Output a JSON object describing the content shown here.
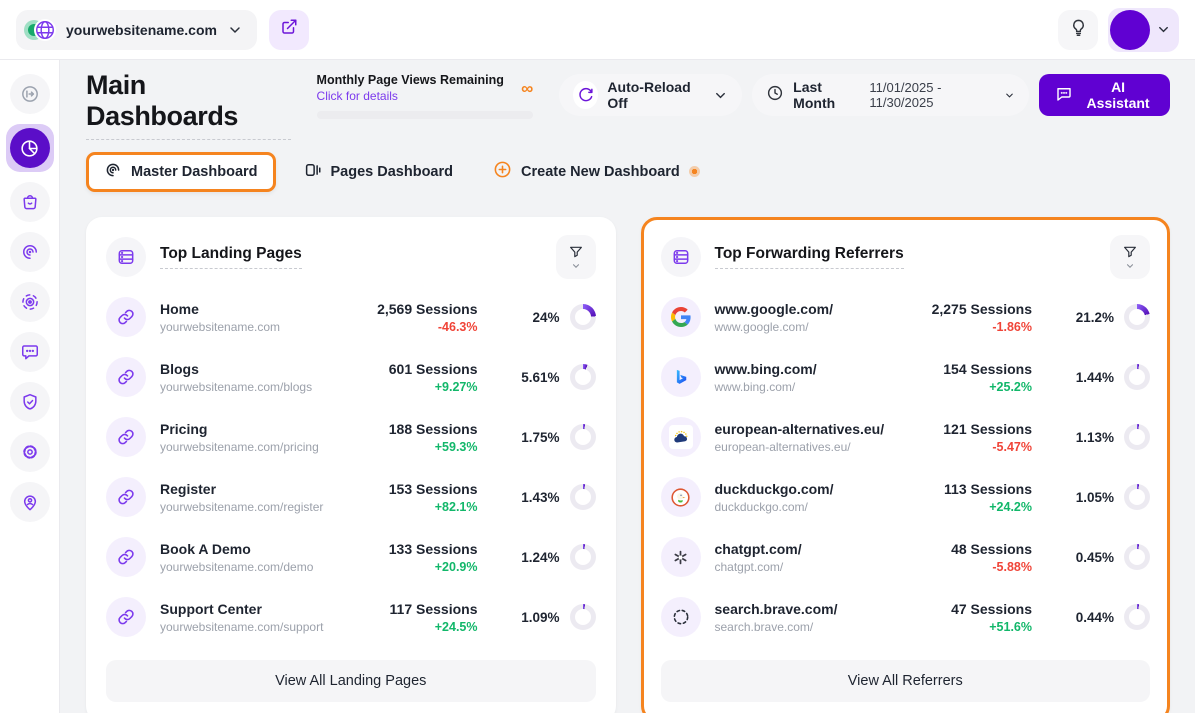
{
  "colors": {
    "accent_purple": "#6001D2",
    "icon_purple": "#7C3AED",
    "highlight_orange": "#F5841F",
    "positive_green": "#12B76A",
    "negative_red": "#F04438"
  },
  "topbar": {
    "website_name": "yourwebsitename.com",
    "icons": [
      "website-favicon",
      "chevron-down",
      "external-link",
      "lightbulb",
      "avatar",
      "chevron-down"
    ]
  },
  "header": {
    "title": "Main Dashboards",
    "quota": {
      "label": "Monthly Page Views Remaining",
      "link": "Click for details",
      "value": "∞"
    },
    "auto_reload_label": "Auto-Reload Off",
    "period": {
      "label": "Last Month",
      "range": "11/01/2025 - 11/30/2025"
    },
    "ai_label": "AI Assistant"
  },
  "tabs": [
    {
      "label": "Master Dashboard",
      "icon": "spiral",
      "active": true
    },
    {
      "label": "Pages Dashboard",
      "icon": "pages",
      "active": false
    },
    {
      "label": "Create New Dashboard",
      "icon": "plus-circle",
      "active": false
    }
  ],
  "sidebar": {
    "items": [
      {
        "icon": "collapse-arrow",
        "state": "muted"
      },
      {
        "icon": "dashboards-pie",
        "state": "active"
      },
      {
        "icon": "ecommerce-bag",
        "state": "default"
      },
      {
        "icon": "behaviour-spiral",
        "state": "default"
      },
      {
        "icon": "session-recordings",
        "state": "default"
      },
      {
        "icon": "feedback-chat",
        "state": "default"
      },
      {
        "icon": "privacy-shield",
        "state": "default"
      },
      {
        "icon": "settings-gear",
        "state": "default"
      },
      {
        "icon": "visitors-pin",
        "state": "default"
      }
    ]
  },
  "cards": [
    {
      "title": "Top Landing Pages",
      "footer_label": "View All Landing Pages",
      "rows": [
        {
          "icon": "link",
          "name": "Home",
          "url": "yourwebsitename.com",
          "sessions": "2,569 Sessions",
          "change": "-46.3%",
          "dir": "down",
          "percent": "24%",
          "pct": 24
        },
        {
          "icon": "link",
          "name": "Blogs",
          "url": "yourwebsitename.com/blogs",
          "sessions": "601 Sessions",
          "change": "+9.27%",
          "dir": "up",
          "percent": "5.61%",
          "pct": 5.61
        },
        {
          "icon": "link",
          "name": "Pricing",
          "url": "yourwebsitename.com/pricing",
          "sessions": "188 Sessions",
          "change": "+59.3%",
          "dir": "up",
          "percent": "1.75%",
          "pct": 1.75
        },
        {
          "icon": "link",
          "name": "Register",
          "url": "yourwebsitename.com/register",
          "sessions": "153 Sessions",
          "change": "+82.1%",
          "dir": "up",
          "percent": "1.43%",
          "pct": 1.43
        },
        {
          "icon": "link",
          "name": "Book A Demo",
          "url": "yourwebsitename.com/demo",
          "sessions": "133 Sessions",
          "change": "+20.9%",
          "dir": "up",
          "percent": "1.24%",
          "pct": 1.24
        },
        {
          "icon": "link",
          "name": "Support Center",
          "url": "yourwebsitename.com/support",
          "sessions": "117 Sessions",
          "change": "+24.5%",
          "dir": "up",
          "percent": "1.09%",
          "pct": 1.09
        }
      ]
    },
    {
      "title": "Top Forwarding Referrers",
      "footer_label": "View All Referrers",
      "highlighted": true,
      "rows": [
        {
          "icon": "google",
          "name": "www.google.com/",
          "url": "www.google.com/",
          "sessions": "2,275 Sessions",
          "change": "-1.86%",
          "dir": "down",
          "percent": "21.2%",
          "pct": 21.2
        },
        {
          "icon": "bing",
          "name": "www.bing.com/",
          "url": "www.bing.com/",
          "sessions": "154 Sessions",
          "change": "+25.2%",
          "dir": "up",
          "percent": "1.44%",
          "pct": 1.44
        },
        {
          "icon": "european-alternatives",
          "name": "european-alternatives.eu/",
          "url": "european-alternatives.eu/",
          "sessions": "121 Sessions",
          "change": "-5.47%",
          "dir": "down",
          "percent": "1.13%",
          "pct": 1.13
        },
        {
          "icon": "duckduckgo",
          "name": "duckduckgo.com/",
          "url": "duckduckgo.com/",
          "sessions": "113 Sessions",
          "change": "+24.2%",
          "dir": "up",
          "percent": "1.05%",
          "pct": 1.05
        },
        {
          "icon": "chatgpt",
          "name": "chatgpt.com/",
          "url": "chatgpt.com/",
          "sessions": "48 Sessions",
          "change": "-5.88%",
          "dir": "down",
          "percent": "0.45%",
          "pct": 0.45
        },
        {
          "icon": "brave",
          "name": "search.brave.com/",
          "url": "search.brave.com/",
          "sessions": "47 Sessions",
          "change": "+51.6%",
          "dir": "up",
          "percent": "0.44%",
          "pct": 0.44
        }
      ]
    }
  ]
}
